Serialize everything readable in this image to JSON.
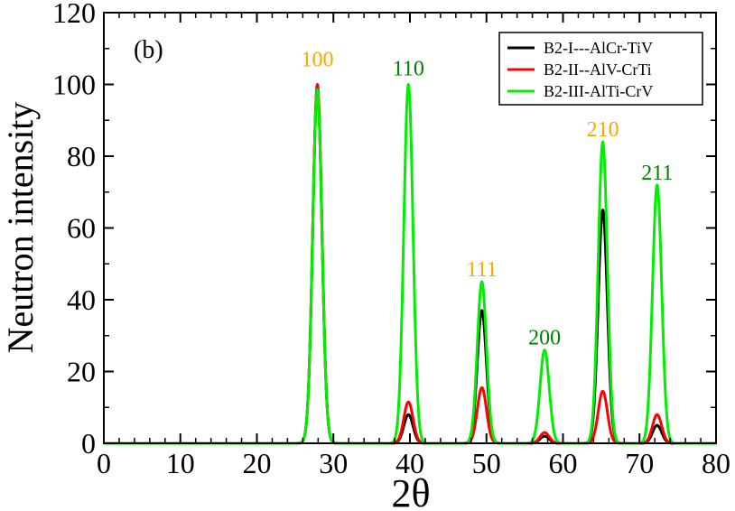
{
  "chart_data": {
    "type": "line",
    "panel_label": "(b)",
    "xlabel": "2θ",
    "ylabel": "Neutron intensity",
    "xlim": [
      0,
      80
    ],
    "ylim": [
      0,
      120
    ],
    "xticks": [
      0,
      10,
      20,
      30,
      40,
      50,
      60,
      70,
      80
    ],
    "yticks": [
      0,
      20,
      40,
      60,
      80,
      100,
      120
    ],
    "grid": false,
    "legend_position": "top-right",
    "peak_width_sigma": 0.6,
    "series": [
      {
        "name": "B2-I---AlCr-TiV",
        "color": "#000000",
        "peaks": [
          {
            "x": 27.9,
            "y": 99
          },
          {
            "x": 39.8,
            "y": 8
          },
          {
            "x": 49.4,
            "y": 37
          },
          {
            "x": 57.6,
            "y": 2
          },
          {
            "x": 65.2,
            "y": 65
          },
          {
            "x": 72.3,
            "y": 5
          }
        ]
      },
      {
        "name": "B2-II--AlV-CrTi",
        "color": "#ff0000",
        "peaks": [
          {
            "x": 27.9,
            "y": 100
          },
          {
            "x": 39.8,
            "y": 11.5
          },
          {
            "x": 49.4,
            "y": 15.5
          },
          {
            "x": 57.6,
            "y": 3
          },
          {
            "x": 65.2,
            "y": 14.5
          },
          {
            "x": 72.3,
            "y": 8
          }
        ]
      },
      {
        "name": "B2-III-AlTi-CrV",
        "color": "#00ee00",
        "peaks": [
          {
            "x": 27.9,
            "y": 98.5
          },
          {
            "x": 39.8,
            "y": 100
          },
          {
            "x": 49.4,
            "y": 45
          },
          {
            "x": 57.6,
            "y": 26
          },
          {
            "x": 65.2,
            "y": 84
          },
          {
            "x": 72.3,
            "y": 72
          }
        ]
      }
    ],
    "annotations": [
      {
        "text": "100",
        "x": 27.9,
        "y": 105,
        "color": "#ffa500"
      },
      {
        "text": "110",
        "x": 39.8,
        "y": 102.5,
        "color": "#008000"
      },
      {
        "text": "111",
        "x": 49.4,
        "y": 46.5,
        "color": "#ffa500"
      },
      {
        "text": "200",
        "x": 57.6,
        "y": 27.5,
        "color": "#008000"
      },
      {
        "text": "210",
        "x": 65.2,
        "y": 85.5,
        "color": "#ffa500"
      },
      {
        "text": "211",
        "x": 72.3,
        "y": 73.5,
        "color": "#008000"
      }
    ]
  }
}
